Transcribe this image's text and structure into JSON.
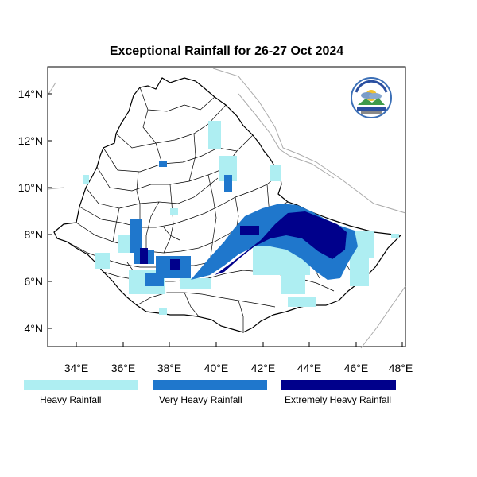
{
  "title": "Exceptional Rainfall for 26-27 Oct 2024",
  "axes": {
    "x_ticks": [
      "34°E",
      "36°E",
      "38°E",
      "40°E",
      "42°E",
      "44°E",
      "46°E",
      "48°E"
    ],
    "y_ticks": [
      "14°N",
      "12°N",
      "10°N",
      "8°N",
      "6°N",
      "4°N"
    ]
  },
  "legend": [
    {
      "label": "Heavy Rainfall",
      "color": "#aeeef2"
    },
    {
      "label": "Very Heavy Rainfall",
      "color": "#1f77cc"
    },
    {
      "label": "Extremely Heavy Rainfall",
      "color": "#00008b"
    }
  ],
  "map": {
    "country": "Ethiopia",
    "lon_range": [
      32.8,
      48.2
    ],
    "lat_range": [
      3.2,
      15.0
    ],
    "boundary_color": "#000000",
    "neighbor_color": "#aaaaaa"
  },
  "logo": {
    "name": "meteorology-agency-logo",
    "lettering": "Ethiopian Meteorology Institute"
  }
}
